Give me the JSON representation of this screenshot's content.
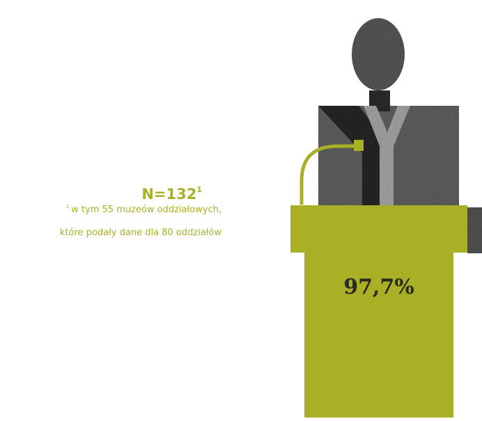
{
  "summary": {
    "n_label": "N=132",
    "n_footnote_mark": "1",
    "footnote_mark": "1",
    "footnote_lines": [
      "w tym 55 muzeów oddziałowych,",
      "które podały dane dla 80 oddziałów"
    ]
  },
  "podium": {
    "value_label": "97,7%"
  }
}
